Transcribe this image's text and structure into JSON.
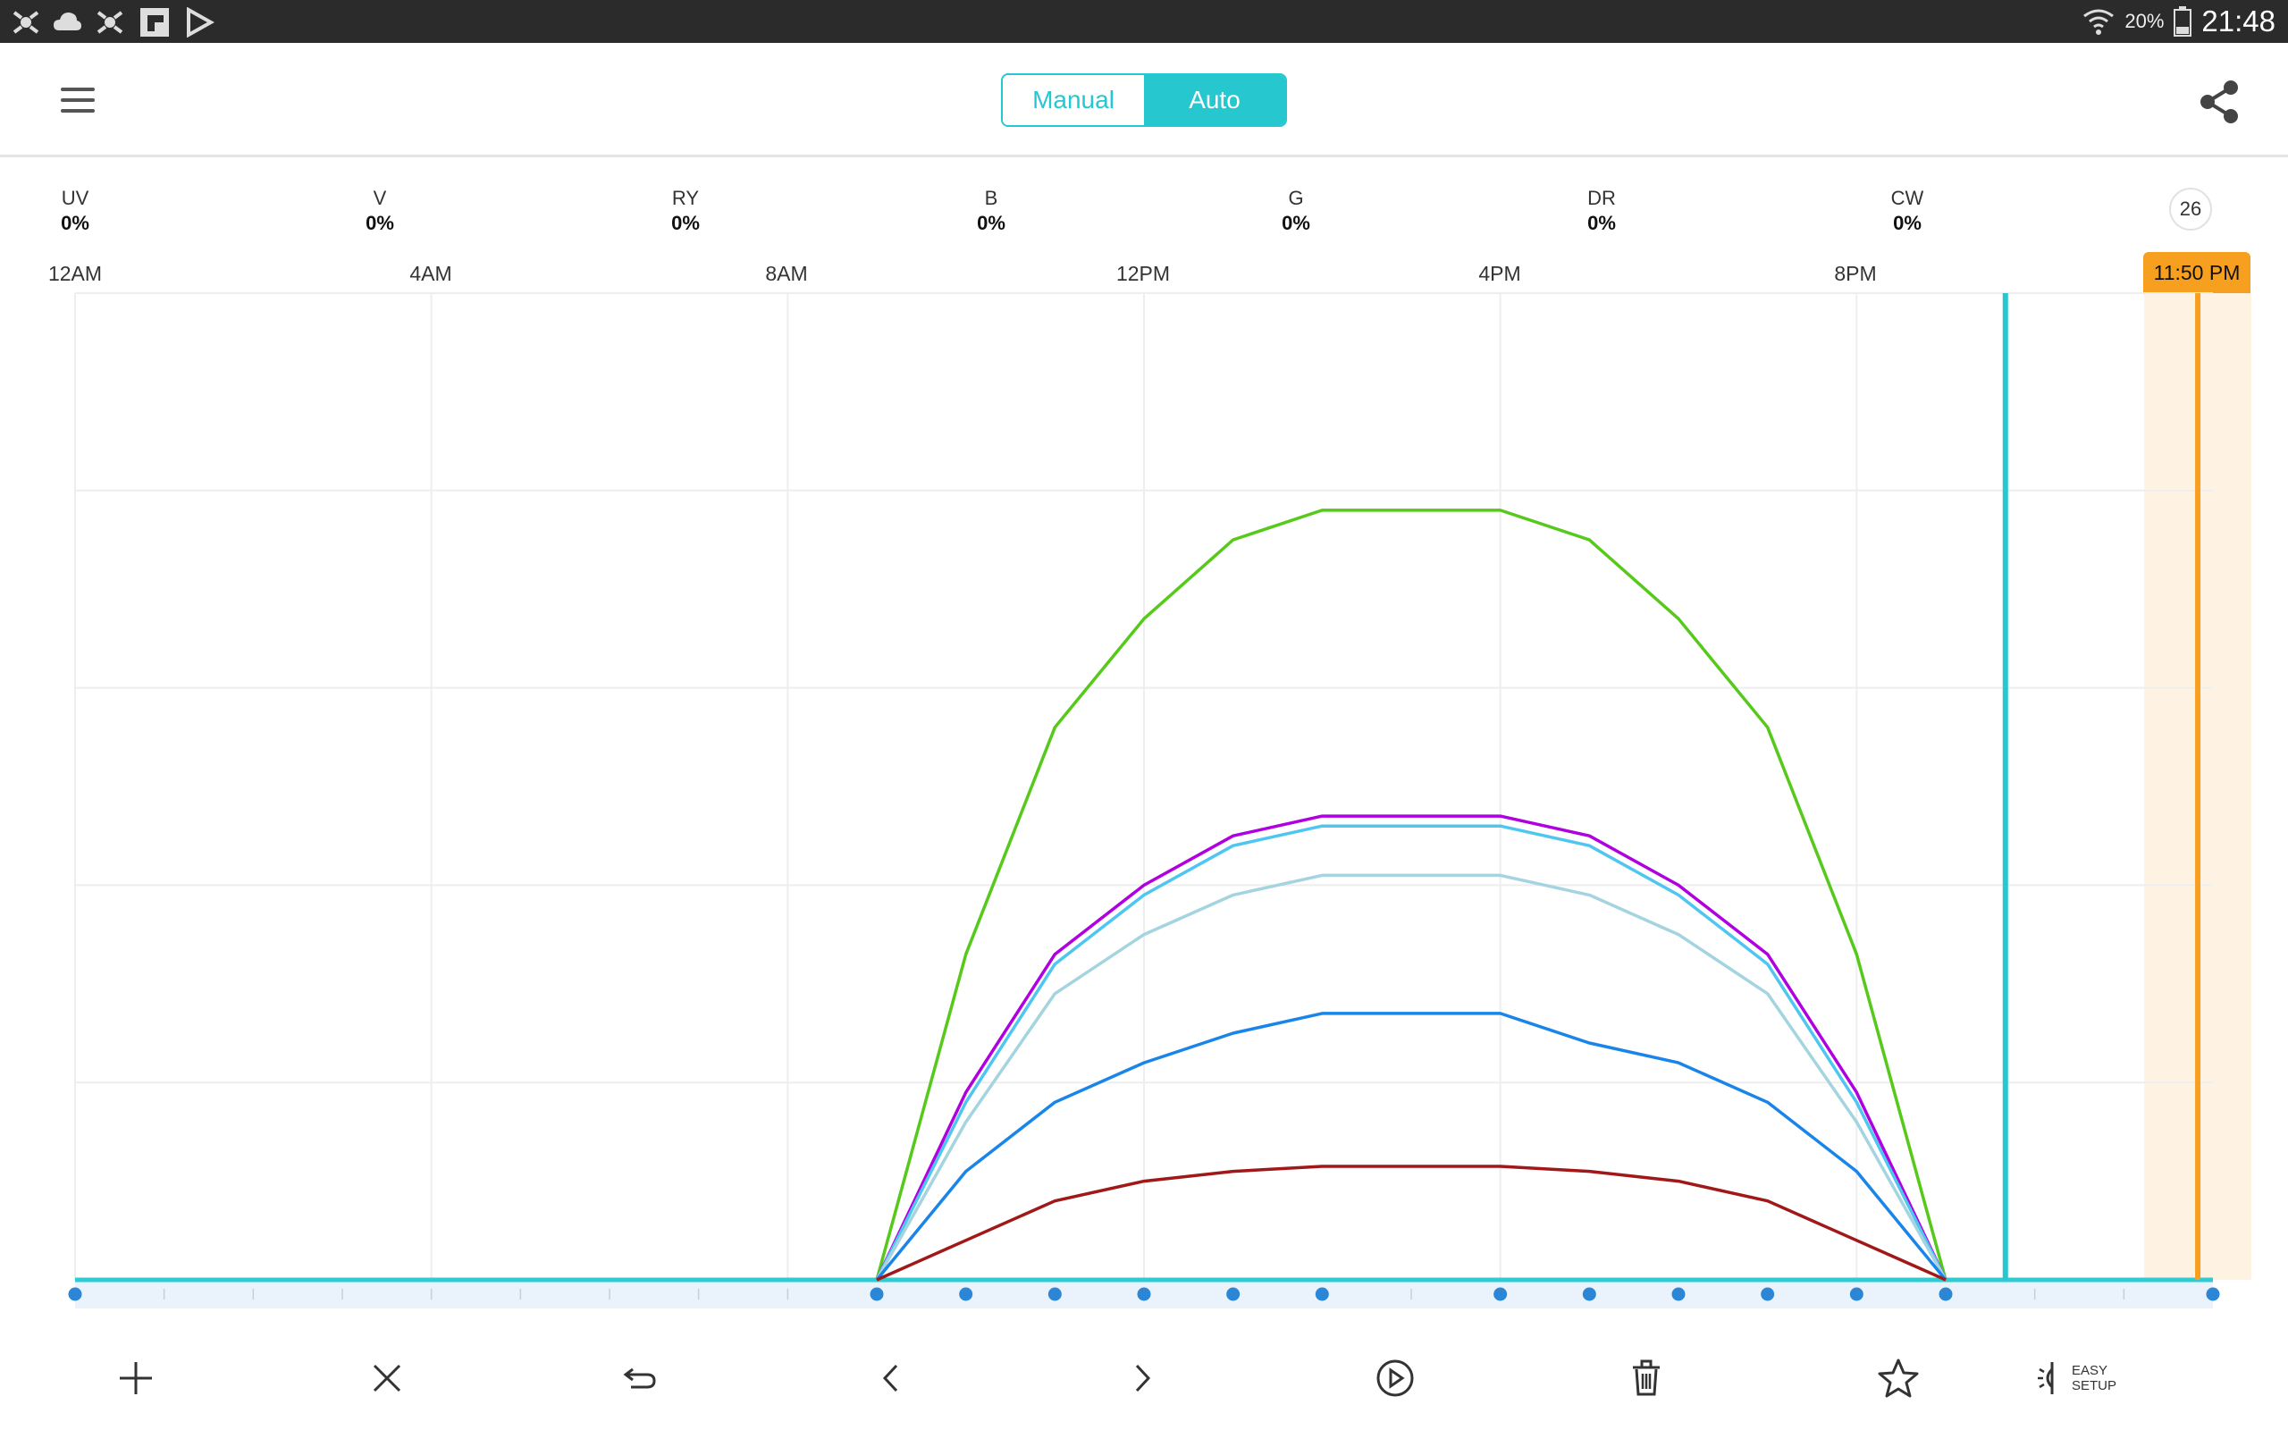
{
  "status_bar": {
    "left_icons": [
      "nav-app-icon",
      "cloud-icon",
      "nav-app-icon",
      "flipboard-icon",
      "play-store-icon"
    ],
    "battery_percent": "20%",
    "clock": "21:48"
  },
  "header": {
    "mode_toggle": {
      "manual_label": "Manual",
      "auto_label": "Auto",
      "selected": "Auto"
    }
  },
  "channels": [
    {
      "name": "UV",
      "value": "0%"
    },
    {
      "name": "V",
      "value": "0%"
    },
    {
      "name": "RY",
      "value": "0%"
    },
    {
      "name": "B",
      "value": "0%"
    },
    {
      "name": "G",
      "value": "0%"
    },
    {
      "name": "DR",
      "value": "0%"
    },
    {
      "name": "CW",
      "value": "0%"
    }
  ],
  "badge": "26",
  "current_time": "11:50 PM",
  "colors": {
    "accent": "#26c7cf",
    "now_marker": "#f7a020",
    "point": "#2b87d6",
    "grid": "#eeeeee"
  },
  "chart_data": {
    "type": "line",
    "x_unit": "hour of day",
    "x_ticks": [
      {
        "label": "12AM",
        "hour": 0
      },
      {
        "label": "4AM",
        "hour": 4
      },
      {
        "label": "8AM",
        "hour": 8
      },
      {
        "label": "12PM",
        "hour": 12
      },
      {
        "label": "4PM",
        "hour": 16
      },
      {
        "label": "8PM",
        "hour": 20
      }
    ],
    "xlim": [
      0,
      24
    ],
    "ylim": [
      0,
      100
    ],
    "grid": true,
    "control_points_hours": [
      0,
      9,
      10,
      11,
      12,
      13,
      14,
      16,
      17,
      18,
      19,
      20,
      21,
      24
    ],
    "current_hour_cyan": 21.67,
    "current_hour_orange": 23.83,
    "series": [
      {
        "color": "#2ecbd2",
        "x": [
          0,
          9,
          21,
          24
        ],
        "y": [
          0,
          0,
          0,
          0
        ]
      },
      {
        "color": "#56c91a",
        "x": [
          9,
          10,
          11,
          12,
          13,
          14,
          16,
          17,
          18,
          19,
          20,
          21
        ],
        "y": [
          0,
          33,
          56,
          67,
          75,
          78,
          78,
          75,
          67,
          56,
          33,
          0
        ]
      },
      {
        "color": "#b000e0",
        "x": [
          9,
          10,
          11,
          12,
          13,
          14,
          16,
          17,
          18,
          19,
          20,
          21
        ],
        "y": [
          0,
          19,
          33,
          40,
          45,
          47,
          47,
          45,
          40,
          33,
          19,
          0
        ]
      },
      {
        "color": "#4fc6ef",
        "x": [
          9,
          10,
          11,
          12,
          13,
          14,
          16,
          17,
          18,
          19,
          20,
          21
        ],
        "y": [
          0,
          18,
          32,
          39,
          44,
          46,
          46,
          44,
          39,
          32,
          18,
          0
        ]
      },
      {
        "color": "#a4d4e0",
        "x": [
          9,
          10,
          11,
          12,
          13,
          14,
          16,
          17,
          18,
          19,
          20,
          21
        ],
        "y": [
          0,
          16,
          29,
          35,
          39,
          41,
          41,
          39,
          35,
          29,
          16,
          0
        ]
      },
      {
        "color": "#1a85e8",
        "x": [
          9,
          10,
          11,
          12,
          13,
          14,
          16,
          17,
          18,
          19,
          20,
          21
        ],
        "y": [
          0,
          11,
          18,
          22,
          25,
          27,
          27,
          24,
          22,
          18,
          11,
          0
        ]
      },
      {
        "color": "#a01818",
        "x": [
          9,
          10,
          11,
          12,
          13,
          14,
          16,
          17,
          18,
          19,
          20,
          21
        ],
        "y": [
          0,
          4,
          8,
          10,
          11,
          11.5,
          11.5,
          11,
          10,
          8,
          4,
          0
        ]
      }
    ]
  },
  "toolbar": {
    "items": [
      {
        "name": "add-point-button",
        "icon": "plus-icon"
      },
      {
        "name": "remove-point-button",
        "icon": "close-icon"
      },
      {
        "name": "undo-button",
        "icon": "undo-icon"
      },
      {
        "name": "previous-point-button",
        "icon": "chevron-left-icon"
      },
      {
        "name": "next-point-button",
        "icon": "chevron-right-icon"
      },
      {
        "name": "play-button",
        "icon": "play-circle-icon"
      },
      {
        "name": "delete-button",
        "icon": "trash-icon"
      },
      {
        "name": "favorite-button",
        "icon": "star-icon"
      }
    ],
    "easy_setup_line1": "EASY",
    "easy_setup_line2": "SETUP"
  }
}
